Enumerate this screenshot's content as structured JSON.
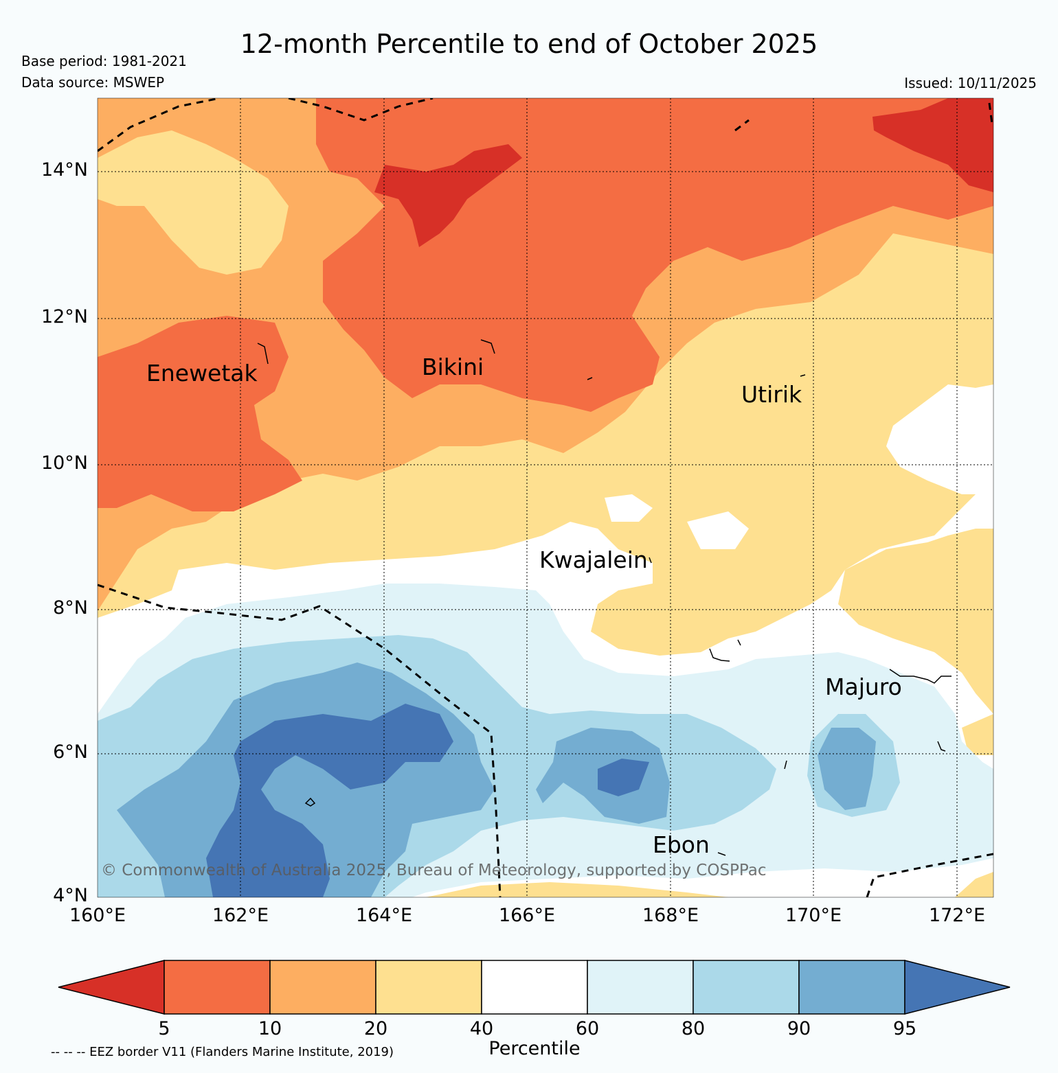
{
  "header": {
    "title": "12-month Percentile to end of October 2025",
    "base_period": "Base period: 1981-2021",
    "data_source": "Data source: MSWEP",
    "issued": "Issued: 10/11/2025"
  },
  "map": {
    "extent": {
      "lon_min": 160.0,
      "lon_max": 172.5,
      "lat_min": 4.0,
      "lat_max": 15.0
    },
    "lat_ticks": [
      "4°N",
      "6°N",
      "8°N",
      "10°N",
      "12°N",
      "14°N"
    ],
    "lon_ticks": [
      "160°E",
      "162°E",
      "164°E",
      "166°E",
      "168°E",
      "170°E",
      "172°E"
    ],
    "places": {
      "enewetak": "Enewetak",
      "bikini": "Bikini",
      "utirik": "Utirik",
      "kwajalein": "Kwajalein",
      "majuro": "Majuro",
      "ebon": "Ebon"
    },
    "copyright": "© Commonwealth of Australia 2025, Bureau of Meteorology, supported by COSPPac"
  },
  "colorbar": {
    "title": "Percentile",
    "ticks": [
      "5",
      "10",
      "20",
      "40",
      "60",
      "80",
      "90",
      "95"
    ],
    "colors": {
      "lt5": "#d73027",
      "p5_10": "#f46d43",
      "p10_20": "#fdae61",
      "p20_40": "#fee090",
      "p40_60": "#ffffff",
      "p60_80": "#e0f3f8",
      "p80_90": "#abd9e9",
      "p90_95": "#74add1",
      "gt95": "#4575b4"
    }
  },
  "legend_note": "-- -- -- EEZ border V11 (Flanders Marine Institute, 2019)"
}
